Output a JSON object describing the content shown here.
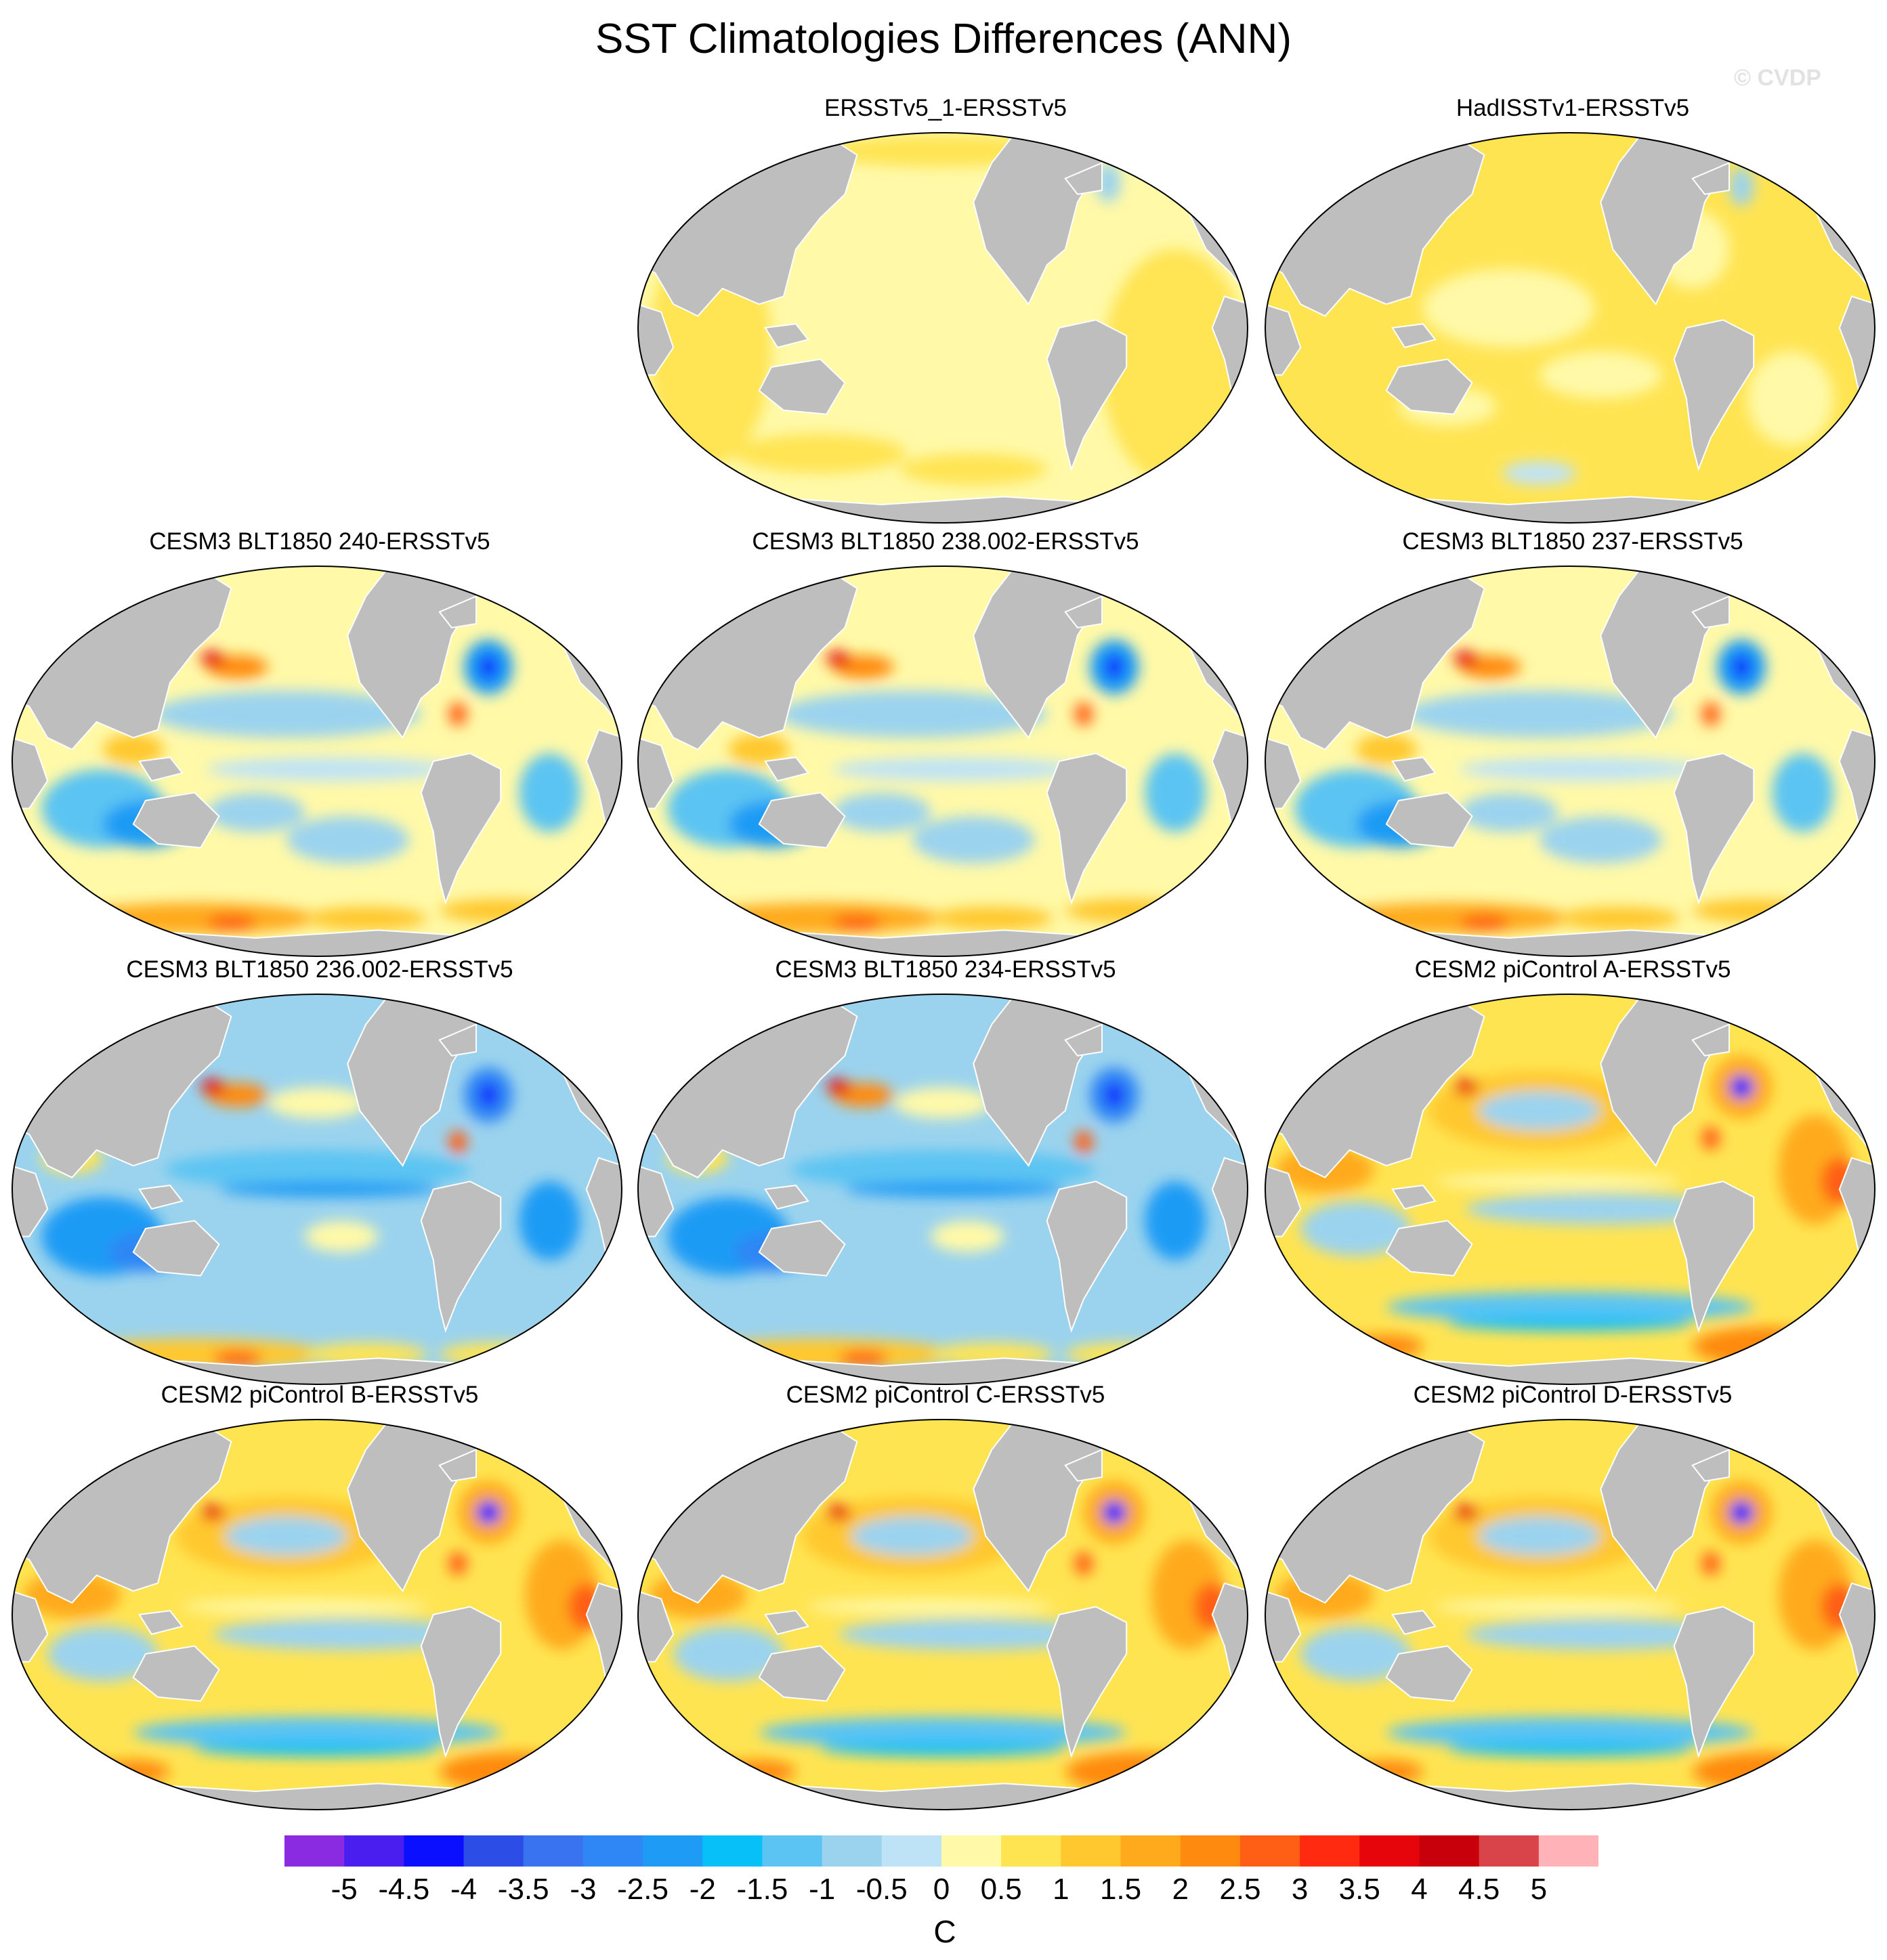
{
  "title": "SST Climatologies Differences (ANN)",
  "watermark": "© CVDP",
  "units": "C",
  "colorbar": {
    "labels": [
      "-5",
      "-4.5",
      "-4",
      "-3.5",
      "-3",
      "-2.5",
      "-2",
      "-1.5",
      "-1",
      "-0.5",
      "0",
      "0.5",
      "1",
      "1.5",
      "2",
      "2.5",
      "3",
      "3.5",
      "4",
      "4.5",
      "5"
    ],
    "colors": [
      "#8a2be2",
      "#4b1ef0",
      "#0a0fff",
      "#2c4ee6",
      "#3a73f0",
      "#2f86f5",
      "#1e9bf5",
      "#08c0f8",
      "#5cc4f2",
      "#9bd3ee",
      "#bfe3f6",
      "#fff9a8",
      "#ffe452",
      "#ffc82e",
      "#ffaa1c",
      "#ff8a10",
      "#ff5e14",
      "#ff2a10",
      "#e6050a",
      "#c8000c",
      "#d9434a",
      "#ffb3b8"
    ]
  },
  "panels": [
    {
      "id": "p1",
      "title": "ERSSTv5_1-ERSSTv5",
      "style": "obs_light"
    },
    {
      "id": "p2",
      "title": "HadISSTv1-ERSSTv5",
      "style": "obs_warm"
    },
    {
      "id": "p3",
      "title": "CESM3 BLT1850 240-ERSSTv5",
      "style": "cesm3"
    },
    {
      "id": "p4",
      "title": "CESM3 BLT1850 238.002-ERSSTv5",
      "style": "cesm3"
    },
    {
      "id": "p5",
      "title": "CESM3 BLT1850 237-ERSSTv5",
      "style": "cesm3"
    },
    {
      "id": "p6",
      "title": "CESM3 BLT1850 236.002-ERSSTv5",
      "style": "cesm3_cool"
    },
    {
      "id": "p7",
      "title": "CESM3 BLT1850 234-ERSSTv5",
      "style": "cesm3_cool"
    },
    {
      "id": "p8",
      "title": "CESM2 piControl A-ERSSTv5",
      "style": "cesm2"
    },
    {
      "id": "p9",
      "title": "CESM2 piControl B-ERSSTv5",
      "style": "cesm2"
    },
    {
      "id": "p10",
      "title": "CESM2 piControl C-ERSSTv5",
      "style": "cesm2"
    },
    {
      "id": "p11",
      "title": "CESM2 piControl D-ERSSTv5",
      "style": "cesm2"
    }
  ]
}
